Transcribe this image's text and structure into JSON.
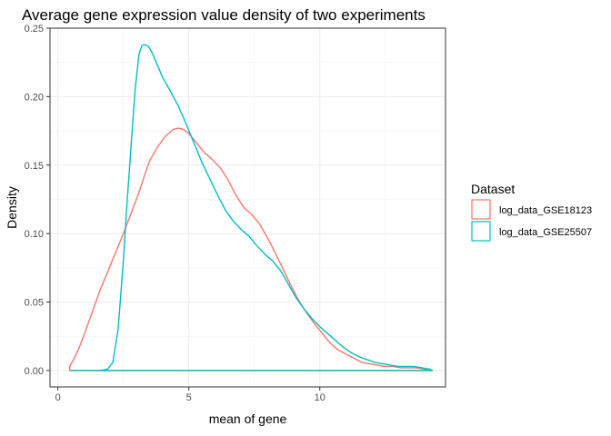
{
  "chart_data": {
    "type": "line",
    "title": "Average gene expression value density of two experiments",
    "xlabel": "mean of gene",
    "ylabel": "Density",
    "xlim": [
      -0.3,
      14.8
    ],
    "ylim": [
      -0.012,
      0.25
    ],
    "x_ticks": [
      0,
      5,
      10
    ],
    "x_tick_labels": [
      "0",
      "5",
      "10"
    ],
    "y_ticks": [
      0,
      0.05,
      0.1,
      0.15,
      0.2,
      0.25
    ],
    "y_tick_labels": [
      "0.00",
      "0.05",
      "0.10",
      "0.15",
      "0.20",
      "0.25"
    ],
    "grid": true,
    "legend": {
      "title": "Dataset",
      "position": "right"
    },
    "series": [
      {
        "name": "log_data_GSE18123",
        "color": "#F8766D",
        "points": [
          [
            0.45,
            0.0
          ],
          [
            0.45,
            0.003
          ],
          [
            0.6,
            0.008
          ],
          [
            0.8,
            0.016
          ],
          [
            1.0,
            0.026
          ],
          [
            1.3,
            0.042
          ],
          [
            1.6,
            0.058
          ],
          [
            1.9,
            0.072
          ],
          [
            2.2,
            0.086
          ],
          [
            2.5,
            0.1
          ],
          [
            2.8,
            0.115
          ],
          [
            3.1,
            0.13
          ],
          [
            3.3,
            0.142
          ],
          [
            3.5,
            0.153
          ],
          [
            3.8,
            0.163
          ],
          [
            4.1,
            0.171
          ],
          [
            4.4,
            0.176
          ],
          [
            4.6,
            0.177
          ],
          [
            4.8,
            0.176
          ],
          [
            5.0,
            0.173
          ],
          [
            5.3,
            0.166
          ],
          [
            5.6,
            0.159
          ],
          [
            5.9,
            0.154
          ],
          [
            6.2,
            0.148
          ],
          [
            6.5,
            0.139
          ],
          [
            6.8,
            0.128
          ],
          [
            7.1,
            0.119
          ],
          [
            7.4,
            0.114
          ],
          [
            7.7,
            0.107
          ],
          [
            8.0,
            0.097
          ],
          [
            8.3,
            0.086
          ],
          [
            8.6,
            0.074
          ],
          [
            8.9,
            0.062
          ],
          [
            9.2,
            0.051
          ],
          [
            9.5,
            0.042
          ],
          [
            9.8,
            0.034
          ],
          [
            10.1,
            0.027
          ],
          [
            10.4,
            0.02
          ],
          [
            10.7,
            0.015
          ],
          [
            11.0,
            0.012
          ],
          [
            11.3,
            0.009
          ],
          [
            11.6,
            0.006
          ],
          [
            11.9,
            0.005
          ],
          [
            12.2,
            0.004
          ],
          [
            12.5,
            0.003
          ],
          [
            12.8,
            0.003
          ],
          [
            13.1,
            0.002
          ],
          [
            13.4,
            0.002
          ],
          [
            13.7,
            0.002
          ],
          [
            14.0,
            0.001
          ],
          [
            14.3,
            0.0
          ],
          [
            0.45,
            0.0
          ]
        ]
      },
      {
        "name": "log_data_GSE25507",
        "color": "#00BFC4",
        "points": [
          [
            0.45,
            0.0
          ],
          [
            1.6,
            0.0
          ],
          [
            1.9,
            0.001
          ],
          [
            2.1,
            0.006
          ],
          [
            2.3,
            0.03
          ],
          [
            2.5,
            0.08
          ],
          [
            2.65,
            0.125
          ],
          [
            2.8,
            0.165
          ],
          [
            2.95,
            0.205
          ],
          [
            3.1,
            0.231
          ],
          [
            3.2,
            0.237
          ],
          [
            3.3,
            0.238
          ],
          [
            3.45,
            0.237
          ],
          [
            3.6,
            0.232
          ],
          [
            3.8,
            0.223
          ],
          [
            4.0,
            0.214
          ],
          [
            4.3,
            0.204
          ],
          [
            4.6,
            0.193
          ],
          [
            4.9,
            0.18
          ],
          [
            5.2,
            0.166
          ],
          [
            5.5,
            0.152
          ],
          [
            5.8,
            0.14
          ],
          [
            6.1,
            0.128
          ],
          [
            6.4,
            0.117
          ],
          [
            6.7,
            0.109
          ],
          [
            7.0,
            0.103
          ],
          [
            7.3,
            0.098
          ],
          [
            7.6,
            0.091
          ],
          [
            7.9,
            0.085
          ],
          [
            8.2,
            0.08
          ],
          [
            8.5,
            0.073
          ],
          [
            8.8,
            0.063
          ],
          [
            9.1,
            0.053
          ],
          [
            9.4,
            0.045
          ],
          [
            9.7,
            0.038
          ],
          [
            10.0,
            0.032
          ],
          [
            10.3,
            0.027
          ],
          [
            10.6,
            0.022
          ],
          [
            10.9,
            0.017
          ],
          [
            11.2,
            0.013
          ],
          [
            11.5,
            0.01
          ],
          [
            11.8,
            0.008
          ],
          [
            12.1,
            0.006
          ],
          [
            12.4,
            0.005
          ],
          [
            12.7,
            0.004
          ],
          [
            13.0,
            0.003
          ],
          [
            13.3,
            0.003
          ],
          [
            13.6,
            0.003
          ],
          [
            13.9,
            0.002
          ],
          [
            14.2,
            0.001
          ],
          [
            14.3,
            0.0
          ],
          [
            0.45,
            0.0
          ]
        ]
      }
    ]
  }
}
